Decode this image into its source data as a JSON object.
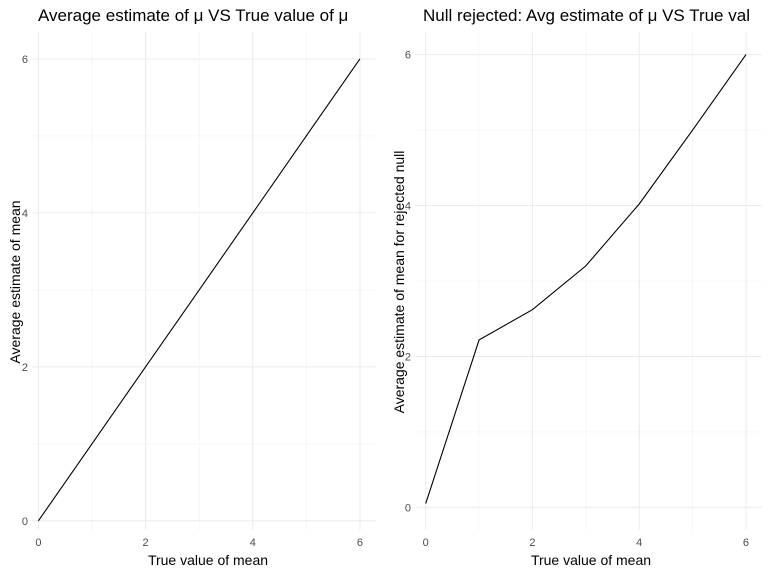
{
  "chart_data": [
    {
      "type": "line",
      "title": "Average estimate of μ VS True value of μ",
      "xlabel": "True value of mean",
      "ylabel": "Average estimate of mean",
      "xlim": [
        -0.12,
        6.3
      ],
      "ylim": [
        -0.12,
        6.35
      ],
      "xticks": [
        0,
        2,
        4,
        6
      ],
      "yticks": [
        0,
        2,
        4,
        6
      ],
      "grid": true,
      "series": [
        {
          "x": [
            0,
            1,
            2,
            3,
            4,
            5,
            6
          ],
          "y": [
            0.0,
            1.0,
            2.0,
            3.0,
            4.0,
            5.0,
            6.0
          ],
          "color": "#000000"
        }
      ]
    },
    {
      "type": "line",
      "title": "Null rejected: Avg estimate of μ VS True val",
      "xlabel": "True value of mean",
      "ylabel": "Average estimate of mean for rejected null",
      "xlim": [
        -0.2,
        6.3
      ],
      "ylim": [
        -0.3,
        6.3
      ],
      "xticks": [
        0,
        2,
        4,
        6
      ],
      "yticks": [
        0,
        2,
        4,
        6
      ],
      "grid": true,
      "series": [
        {
          "x": [
            0,
            1,
            2,
            3,
            4,
            5,
            6
          ],
          "y": [
            0.05,
            2.22,
            2.62,
            3.2,
            4.02,
            5.0,
            6.0
          ],
          "color": "#000000"
        }
      ]
    }
  ]
}
